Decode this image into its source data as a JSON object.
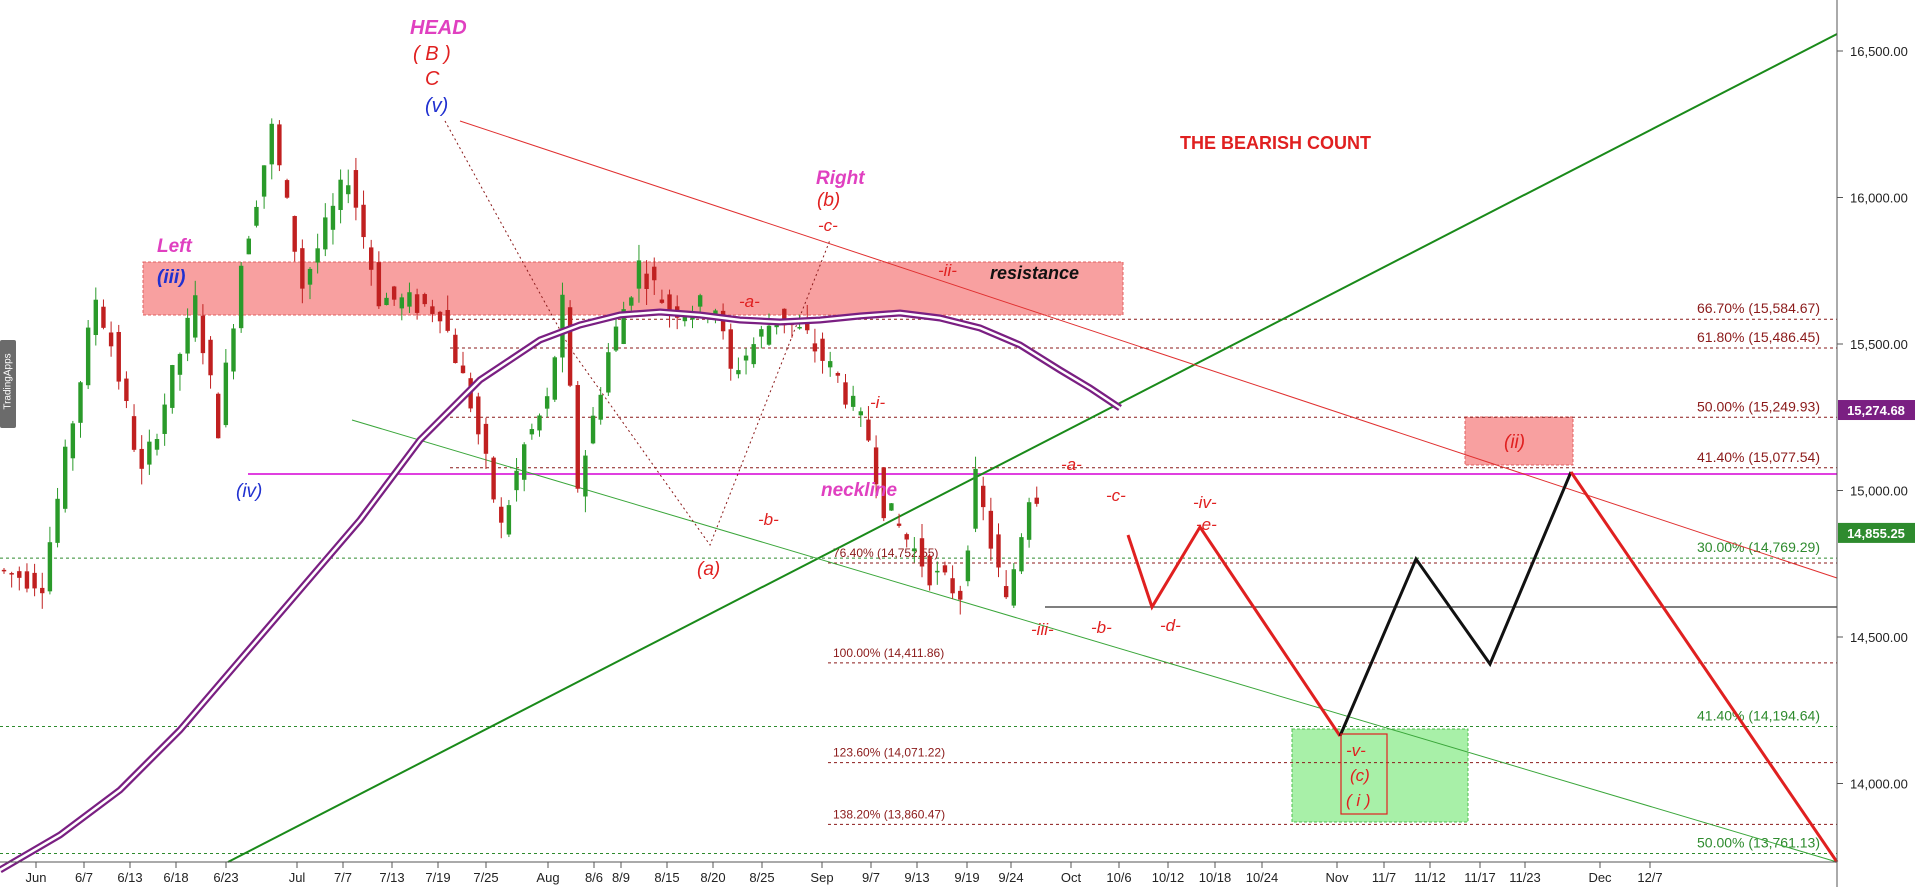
{
  "watermark": "TradingApps",
  "chart_data": {
    "type": "candlestick",
    "title": "THE BEARISH COUNT",
    "y_axis": {
      "ylim": [
        13700,
        16600
      ],
      "ticks": [
        16500,
        16000,
        15500,
        15000,
        14500,
        14000
      ],
      "tick_labels": [
        "16,500.00",
        "16,000.00",
        "15,500.00",
        "15,000.00",
        "14,500.00",
        "14,000.00"
      ]
    },
    "x_axis": {
      "tick_labels": [
        "Jun",
        "6/7",
        "6/13",
        "6/18",
        "6/23",
        "Jul",
        "7/7",
        "7/13",
        "7/19",
        "7/25",
        "Aug",
        "8/6",
        "8/9",
        "8/15",
        "8/20",
        "8/25",
        "Sep",
        "9/7",
        "9/13",
        "9/19",
        "9/24",
        "Oct",
        "10/6",
        "10/12",
        "10/18",
        "10/24",
        "Nov",
        "11/7",
        "11/12",
        "11/17",
        "11/23",
        "Dec",
        "12/7"
      ]
    },
    "price_close": [
      14620,
      14780,
      14900,
      15050,
      14950,
      15100,
      15350,
      15620,
      15500,
      15300,
      15200,
      15150,
      15080,
      15300,
      15500,
      15600,
      15580,
      15450,
      15350,
      15420,
      15600,
      15780,
      16100,
      16250,
      15900,
      15750,
      15700,
      15800,
      16050,
      16080,
      15800,
      15650,
      15550,
      15500,
      15450,
      15300,
      15200,
      15100,
      14800,
      14900,
      15200,
      15400,
      15620,
      15050,
      15300,
      15500,
      15650,
      15720,
      15700,
      15620,
      15300,
      15450,
      15550,
      15650,
      15550,
      15450,
      15250,
      15050,
      14900,
      14850,
      14700,
      14800,
      14900,
      15000,
      14700,
      14650,
      14850
    ],
    "series": [
      {
        "name": "price_swing",
        "values": [
          [
            0,
            14730
          ],
          [
            6,
            14690
          ],
          [
            13,
            15660
          ],
          [
            15,
            15500
          ],
          [
            19,
            15050
          ],
          [
            26,
            15640
          ],
          [
            29,
            15220
          ],
          [
            32,
            15780
          ],
          [
            36,
            16230
          ],
          [
            40,
            15700
          ],
          [
            46,
            16080
          ],
          [
            50,
            15660
          ],
          [
            58,
            15620
          ],
          [
            62,
            15300
          ],
          [
            66,
            14870
          ],
          [
            69,
            15150
          ],
          [
            72,
            15300
          ],
          [
            74,
            15630
          ],
          [
            76,
            15020
          ],
          [
            80,
            15470
          ],
          [
            84,
            15770
          ],
          [
            88,
            15620
          ],
          [
            94,
            15630
          ],
          [
            96,
            15400
          ],
          [
            102,
            15600
          ],
          [
            106,
            15520
          ],
          [
            110,
            15380
          ],
          [
            114,
            15180
          ],
          [
            116,
            14950
          ],
          [
            122,
            14720
          ],
          [
            126,
            14650
          ],
          [
            128,
            15030
          ],
          [
            132,
            14610
          ],
          [
            135,
            14990
          ]
        ]
      }
    ],
    "fib_levels": [
      {
        "label": "66.70% (15,584.67)",
        "value": 15584.67,
        "color": "#8b1a1a"
      },
      {
        "label": "61.80% (15,486.45)",
        "value": 15486.45,
        "color": "#8b1a1a"
      },
      {
        "label": "50.00% (15,249.93)",
        "value": 15249.93,
        "color": "#8b1a1a"
      },
      {
        "label": "41.40% (15,077.54)",
        "value": 15077.54,
        "color": "#8b1a1a"
      },
      {
        "label": "30.00% (14,769.29)",
        "value": 14769.29,
        "color": "#2e8b2e"
      },
      {
        "label": "76.40% (14,752.55)",
        "value": 14752.55,
        "color": "#8b1a1a"
      },
      {
        "label": "100.00% (14,411.86)",
        "value": 14411.86,
        "color": "#8b1a1a"
      },
      {
        "label": "41.40% (14,194.64)",
        "value": 14194.64,
        "color": "#2e8b2e"
      },
      {
        "label": "123.60% (14,071.22)",
        "value": 14071.22,
        "color": "#8b1a1a"
      },
      {
        "label": "138.20% (13,860.47)",
        "value": 13860.47,
        "color": "#8b1a1a"
      },
      {
        "label": "50.00% (13,761.13)",
        "value": 13761.13,
        "color": "#2e8b2e"
      }
    ],
    "price_badges": [
      {
        "label": "15,274.68",
        "value": 15274.68,
        "color": "#7a1f82"
      },
      {
        "label": "14,855.25",
        "value": 14855.25,
        "color": "#2e8b2e"
      }
    ],
    "annotations": {
      "head": "HEAD",
      "head_b": "( B )",
      "head_c": "C",
      "wave_v": "(v)",
      "left": "Left",
      "wave_iii": "(iii)",
      "wave_iv": "(iv)",
      "right": "Right",
      "wave_b_paren": "(b)",
      "wave_c_top": "-c-",
      "wave_a_mid": "-a-",
      "wave_b_mid": "-b-",
      "wave_a_paren": "(a)",
      "wave_i_small": "-i-",
      "wave_ii_small": "-ii-",
      "resistance": "resistance",
      "neckline": "neckline",
      "wave_a_right": "-a-",
      "wave_c_right": "-c-",
      "wave_iii_small": "-iii-",
      "wave_b_right": "-b-",
      "wave_d": "-d-",
      "wave_iv_small": "-iv-",
      "wave_e": "-e-",
      "wave_ii_paren": "(ii)",
      "wave_v_small": "-v-",
      "wave_c_paren": "(c)",
      "wave_i_paren": "( i )"
    },
    "grid": false,
    "legend": "none"
  }
}
